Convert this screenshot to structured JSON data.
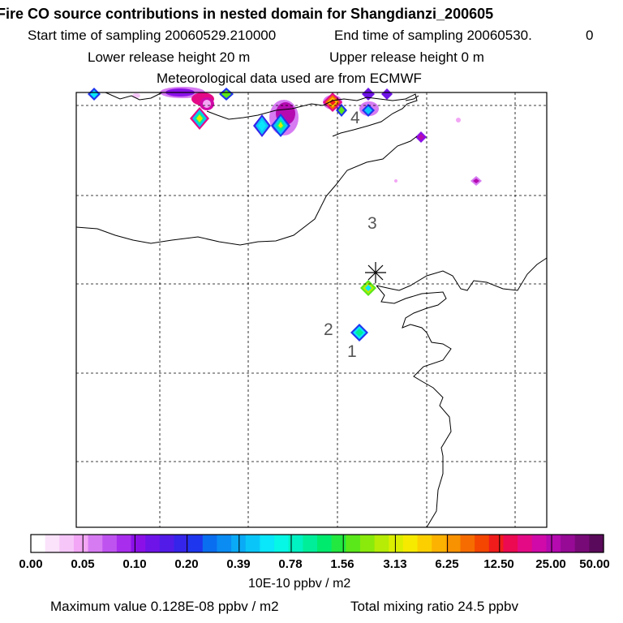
{
  "header": {
    "title": "Fire CO source contributions in nested domain for Shangdianzi_200605",
    "start_label": "Start time of sampling 20060529.210000",
    "end_label": "End time of sampling 20060530.",
    "end_suffix": "0",
    "lower_label": "Lower release height   20 m",
    "upper_label": "Upper release height    0 m",
    "met_label": "Meteorological data used are from ECMWF"
  },
  "map": {
    "station_marker": "asterisk-icon",
    "labels": [
      "1",
      "2",
      "3",
      "4"
    ]
  },
  "legend": {
    "ticks": [
      "0.00",
      "0.05",
      "0.10",
      "0.20",
      "0.39",
      "0.78",
      "1.56",
      "3.13",
      "6.25",
      "12.50",
      "25.00",
      "50.00"
    ],
    "units": "10E-10 ppbv / m2",
    "colors": [
      "#ffffff",
      "#fbe3fb",
      "#f6c6f8",
      "#f2a6f5",
      "#d67bf2",
      "#bf53f0",
      "#a82ded",
      "#8b10e8",
      "#6f14e8",
      "#521be8",
      "#3524ea",
      "#1e36ee",
      "#0a6ef0",
      "#0a8cf3",
      "#0aaaf6",
      "#0ac6f8",
      "#0ae6fa",
      "#06f7e6",
      "#00f2c2",
      "#00ee9a",
      "#00ea6e",
      "#22e840",
      "#5ae81a",
      "#8aea0c",
      "#b6ec06",
      "#dcee00",
      "#f6ea00",
      "#fcd000",
      "#fcb200",
      "#f89200",
      "#f66c00",
      "#f44600",
      "#f01c1c",
      "#ec0a52",
      "#e40a86",
      "#d00aa8",
      "#b40ab0",
      "#960a96",
      "#780a78",
      "#5a0a5a"
    ]
  },
  "footer": {
    "max_label": "Maximum value  0.128E-08 ppbv / m2",
    "total_label": "Total mixing ratio       24.5 ppbv"
  }
}
